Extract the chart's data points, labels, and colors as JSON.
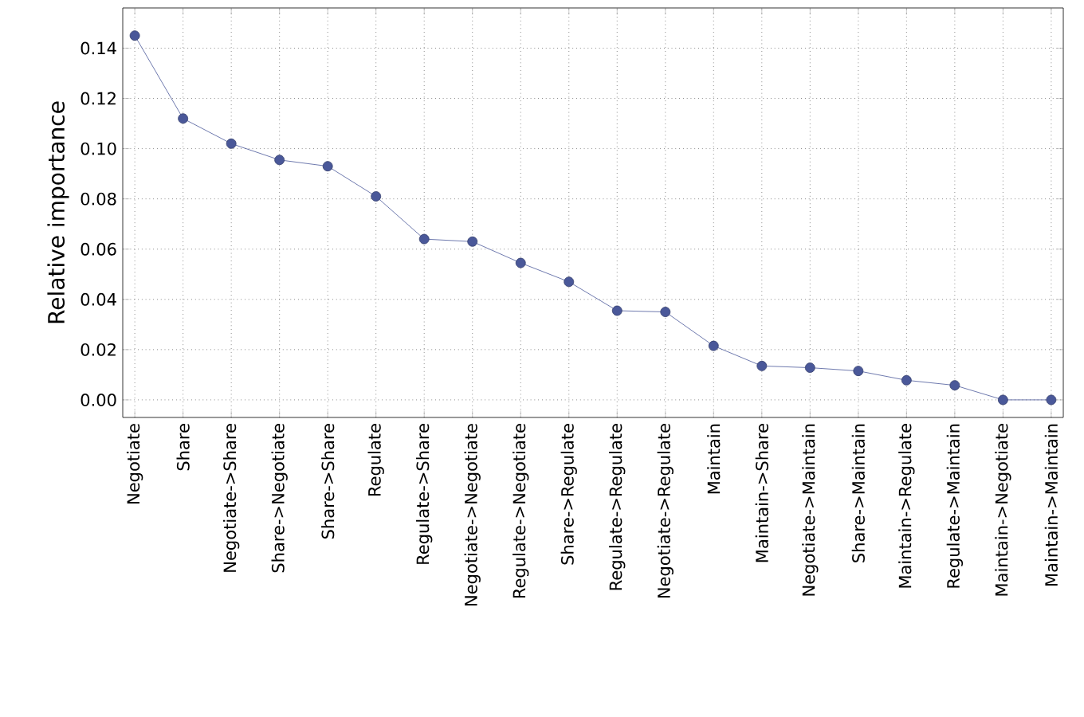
{
  "chart_data": {
    "type": "line",
    "ylabel": "Relative importance",
    "categories": [
      "Negotiate",
      "Share",
      "Negotiate->Share",
      "Share->Negotiate",
      "Share->Share",
      "Regulate",
      "Regulate->Share",
      "Negotiate->Negotiate",
      "Regulate->Negotiate",
      "Share->Regulate",
      "Regulate->Regulate",
      "Negotiate->Regulate",
      "Maintain",
      "Maintain->Share",
      "Negotiate->Maintain",
      "Share->Maintain",
      "Maintain->Regulate",
      "Regulate->Maintain",
      "Maintain->Negotiate",
      "Maintain->Maintain"
    ],
    "values": [
      0.145,
      0.112,
      0.102,
      0.0955,
      0.093,
      0.081,
      0.064,
      0.063,
      0.0545,
      0.047,
      0.0355,
      0.035,
      0.0215,
      0.0135,
      0.0128,
      0.0115,
      0.0078,
      0.0058,
      0.0,
      0.0
    ],
    "color": "#4a5899",
    "marker": "circle",
    "line_style": "solid",
    "grid": true,
    "ylim": [
      -0.007,
      0.156
    ],
    "yticks": [
      {
        "value": 0,
        "label": "0.00"
      },
      {
        "value": 0.02,
        "label": "0.02"
      },
      {
        "value": 0.04,
        "label": "0.04"
      },
      {
        "value": 0.06,
        "label": "0.06"
      },
      {
        "value": 0.08,
        "label": "0.08"
      },
      {
        "value": 0.1,
        "label": "0.10"
      },
      {
        "value": 0.12,
        "label": "0.12"
      },
      {
        "value": 0.14,
        "label": "0.14"
      }
    ]
  }
}
